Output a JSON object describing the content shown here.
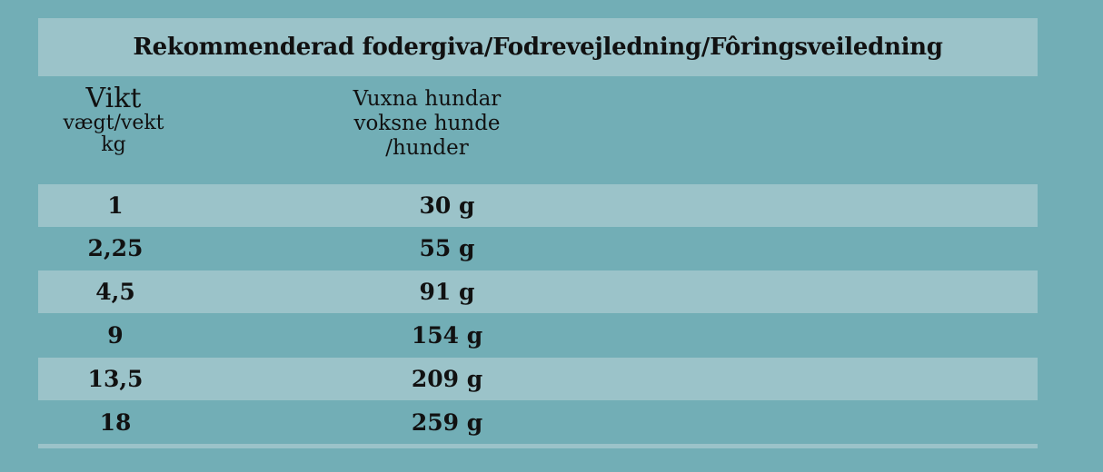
{
  "title": "Rekommenderad fodergiva/Fodrevejledning/Fôringsveiledning",
  "columns": {
    "weight": {
      "line1": "Vikt",
      "line2": "vægt/vekt",
      "line3": "kg"
    },
    "adult": {
      "line1": "Vuxna hundar",
      "line2": "voksne hunde",
      "line3": "/hunder"
    }
  },
  "rows": [
    {
      "weight": "1",
      "amount": "30 g"
    },
    {
      "weight": "2,25",
      "amount": "55 g"
    },
    {
      "weight": "4,5",
      "amount": "91 g"
    },
    {
      "weight": "9",
      "amount": "154 g"
    },
    {
      "weight": "13,5",
      "amount": "209 g"
    },
    {
      "weight": "18",
      "amount": "259 g"
    }
  ],
  "colors": {
    "background": "#72aeb6",
    "band": "#9bc3c9",
    "text": "#111111"
  }
}
